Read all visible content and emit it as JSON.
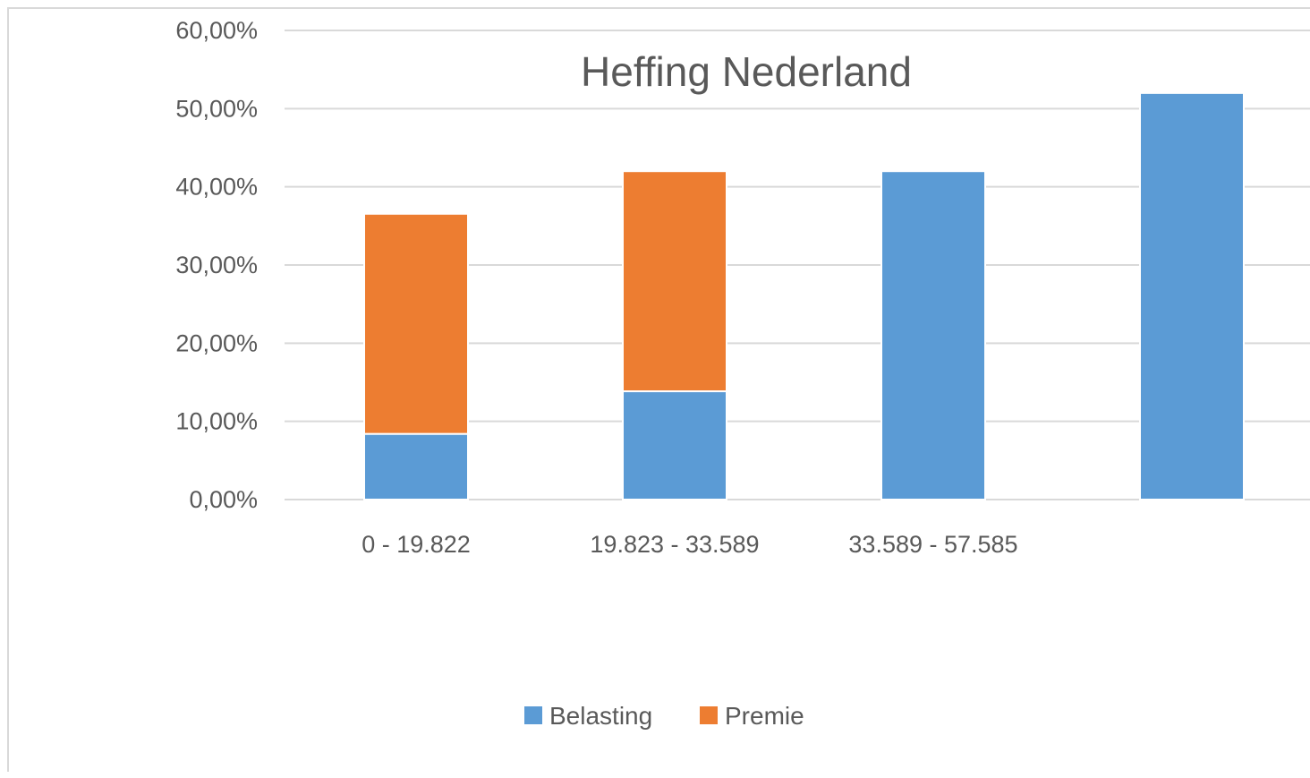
{
  "chart_data": {
    "type": "bar",
    "stacked": true,
    "title": "Heffing Nederland",
    "xlabel": "",
    "ylabel": "",
    "categories": [
      "0 - 19.822",
      "19.823 - 33.589",
      "33.589 - 57.585",
      ""
    ],
    "series": [
      {
        "name": "Belasting",
        "color": "#5b9bd5",
        "values": [
          8.4,
          13.85,
          42.0,
          52.0
        ]
      },
      {
        "name": "Premie",
        "color": "#ed7d31",
        "values": [
          28.15,
          28.15,
          0,
          0
        ]
      }
    ],
    "ylim": [
      0,
      60
    ],
    "yticks": [
      "0,00%",
      "10,00%",
      "20,00%",
      "30,00%",
      "40,00%",
      "50,00%",
      "60,00%"
    ],
    "grid": true,
    "legend_position": "bottom",
    "gridline_color": "#d9d9d9"
  }
}
